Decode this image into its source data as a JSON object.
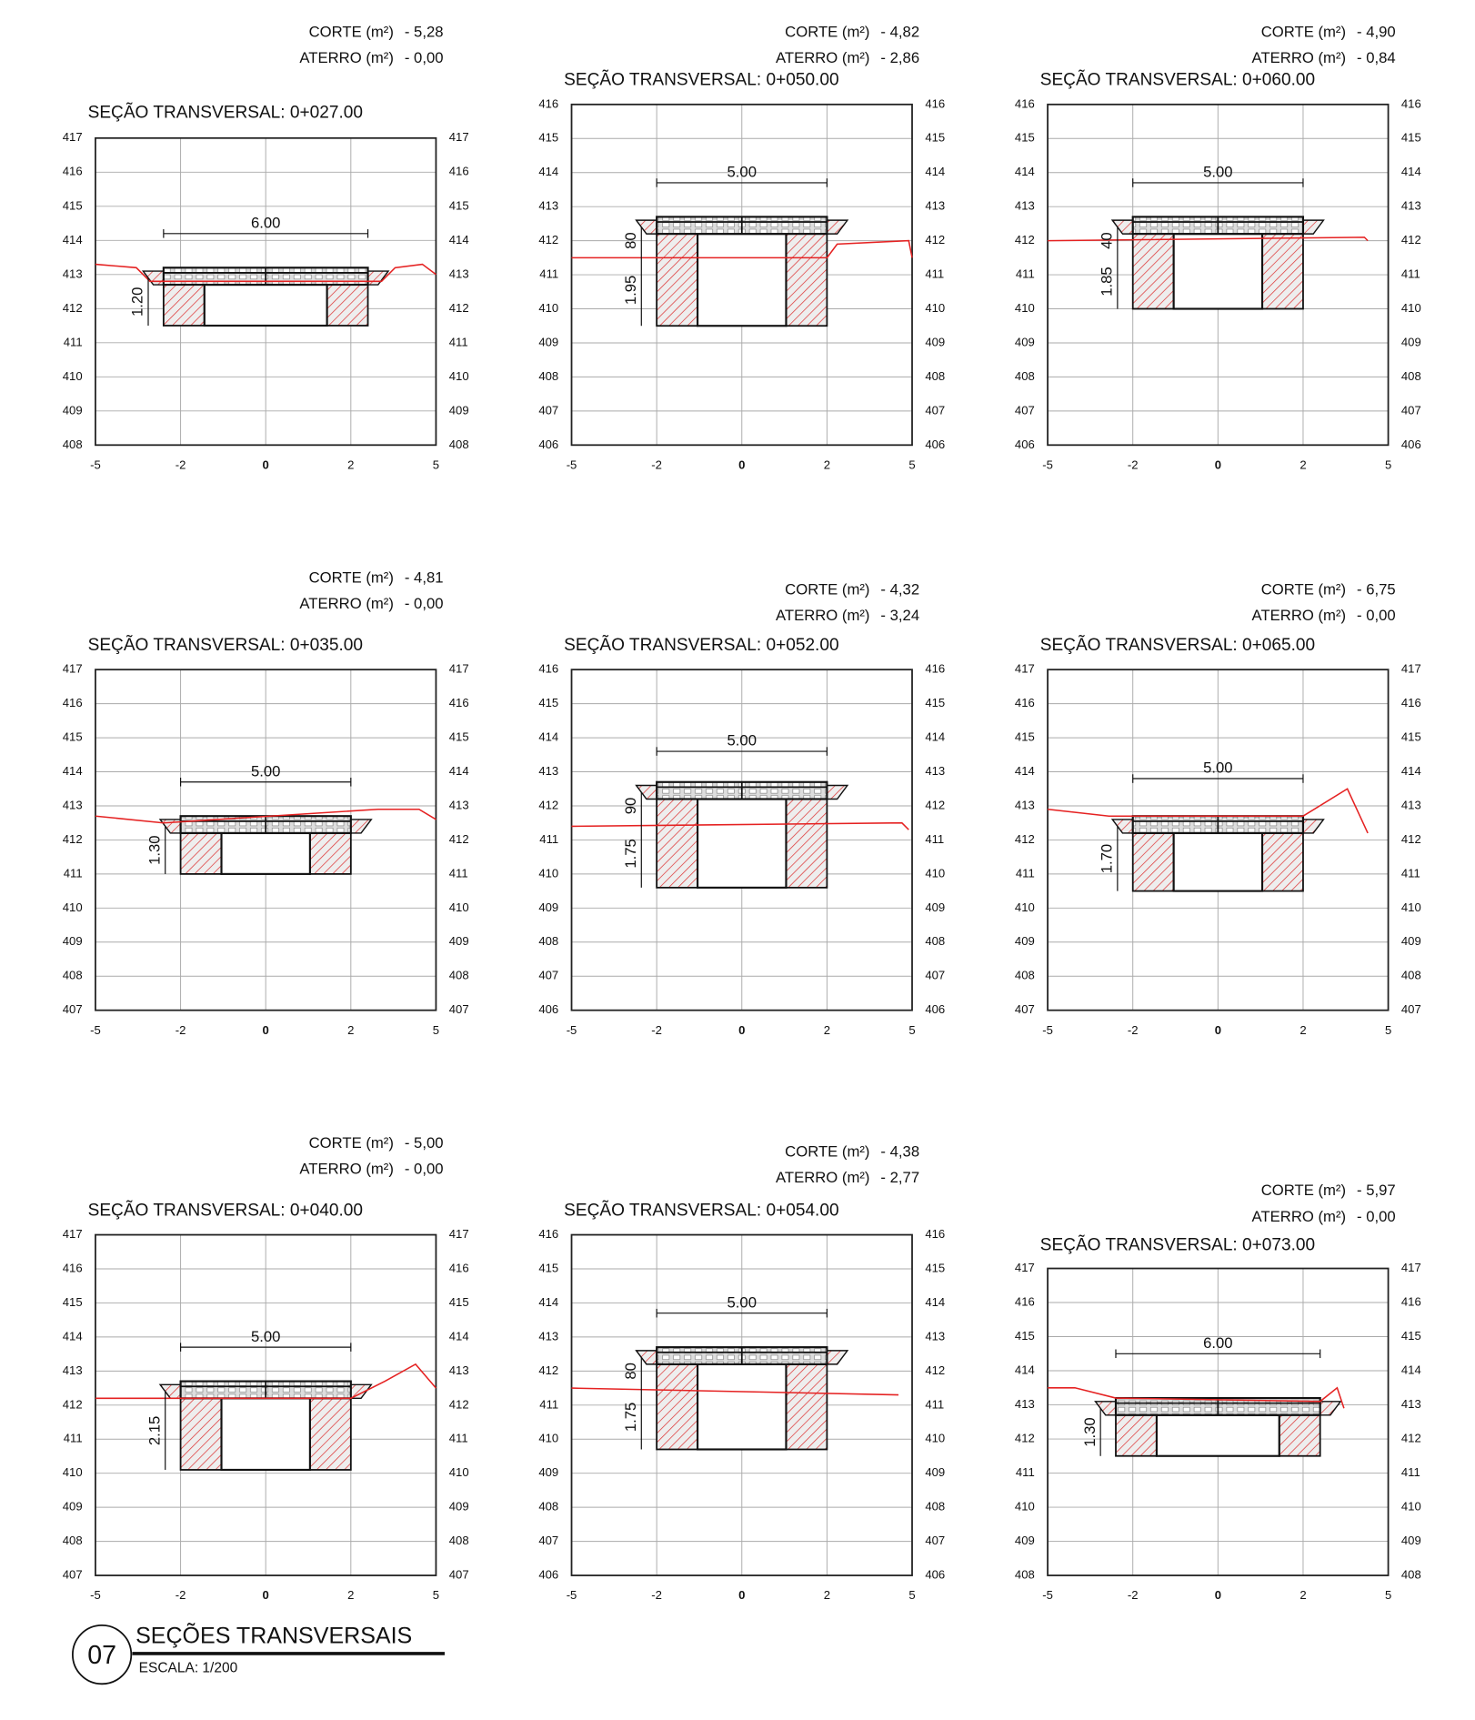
{
  "sections": [
    {
      "title": "SEÇÃO TRANSVERSAL: 0+027.00",
      "corte_label": "CORTE (m²)",
      "corte_value": "- 5,28",
      "aterro_label": "ATERRO (m²)",
      "aterro_value": "- 0,00",
      "yticks": [
        417,
        416,
        415,
        414,
        413,
        412,
        411,
        410,
        409,
        408
      ],
      "xticks": [
        -5,
        -2,
        0,
        2,
        5
      ],
      "dims": [
        "6.00",
        "1.20"
      ]
    },
    {
      "title": "SEÇÃO TRANSVERSAL: 0+050.00",
      "corte_label": "CORTE (m²)",
      "corte_value": "- 4,82",
      "aterro_label": "ATERRO (m²)",
      "aterro_value": "- 2,86",
      "yticks": [
        416,
        415,
        414,
        413,
        412,
        411,
        410,
        409,
        408,
        407,
        406
      ],
      "xticks": [
        -5,
        -2,
        0,
        2,
        5
      ],
      "dims": [
        "5.00",
        "80",
        "1.95"
      ]
    },
    {
      "title": "SEÇÃO TRANSVERSAL: 0+060.00",
      "corte_label": "CORTE (m²)",
      "corte_value": "- 4,90",
      "aterro_label": "ATERRO (m²)",
      "aterro_value": "- 0,84",
      "yticks": [
        416,
        415,
        414,
        413,
        412,
        411,
        410,
        409,
        408,
        407,
        406
      ],
      "xticks": [
        -5,
        -2,
        0,
        2,
        5
      ],
      "dims": [
        "5.00",
        "40",
        "1.85"
      ]
    },
    {
      "title": "SEÇÃO TRANSVERSAL: 0+035.00",
      "corte_label": "CORTE (m²)",
      "corte_value": "- 4,81",
      "aterro_label": "ATERRO (m²)",
      "aterro_value": "- 0,00",
      "yticks": [
        417,
        416,
        415,
        414,
        413,
        412,
        411,
        410,
        409,
        408,
        407
      ],
      "xticks": [
        -5,
        -2,
        0,
        2,
        5
      ],
      "dims": [
        "5.00",
        "1.30"
      ]
    },
    {
      "title": "SEÇÃO TRANSVERSAL: 0+052.00",
      "corte_label": "CORTE (m²)",
      "corte_value": "- 4,32",
      "aterro_label": "ATERRO (m²)",
      "aterro_value": "- 3,24",
      "yticks": [
        416,
        415,
        414,
        413,
        412,
        411,
        410,
        409,
        408,
        407,
        406
      ],
      "xticks": [
        -5,
        -2,
        0,
        2,
        5
      ],
      "dims": [
        "5.00",
        "90",
        "1.75"
      ]
    },
    {
      "title": "SEÇÃO TRANSVERSAL: 0+065.00",
      "corte_label": "CORTE (m²)",
      "corte_value": "- 6,75",
      "aterro_label": "ATERRO (m²)",
      "aterro_value": "- 0,00",
      "yticks": [
        417,
        416,
        415,
        414,
        413,
        412,
        411,
        410,
        409,
        408,
        407
      ],
      "xticks": [
        -5,
        -2,
        0,
        2,
        5
      ],
      "dims": [
        "5.00",
        "1.70"
      ]
    },
    {
      "title": "SEÇÃO TRANSVERSAL: 0+040.00",
      "corte_label": "CORTE (m²)",
      "corte_value": "- 5,00",
      "aterro_label": "ATERRO (m²)",
      "aterro_value": "- 0,00",
      "yticks": [
        417,
        416,
        415,
        414,
        413,
        412,
        411,
        410,
        409,
        408,
        407
      ],
      "xticks": [
        -5,
        -2,
        0,
        2,
        5
      ],
      "dims": [
        "5.00",
        "2.15"
      ]
    },
    {
      "title": "SEÇÃO TRANSVERSAL: 0+054.00",
      "corte_label": "CORTE (m²)",
      "corte_value": "- 4,38",
      "aterro_label": "ATERRO (m²)",
      "aterro_value": "- 2,77",
      "yticks": [
        416,
        415,
        414,
        413,
        412,
        411,
        410,
        409,
        408,
        407,
        406
      ],
      "xticks": [
        -5,
        -2,
        0,
        2,
        5
      ],
      "dims": [
        "5.00",
        "80",
        "1.75"
      ]
    },
    {
      "title": "SEÇÃO TRANSVERSAL: 0+073.00",
      "corte_label": "CORTE (m²)",
      "corte_value": "- 5,97",
      "aterro_label": "ATERRO (m²)",
      "aterro_value": "- 0,00",
      "yticks": [
        417,
        416,
        415,
        414,
        413,
        412,
        411,
        410,
        409,
        408
      ],
      "xticks": [
        -5,
        -2,
        0,
        2,
        5
      ],
      "dims": [
        "6.00",
        "1.30"
      ]
    }
  ],
  "footer": {
    "number": "07",
    "title": "SEÇÕES TRANSVERSAIS",
    "scale": "ESCALA: 1/200"
  }
}
